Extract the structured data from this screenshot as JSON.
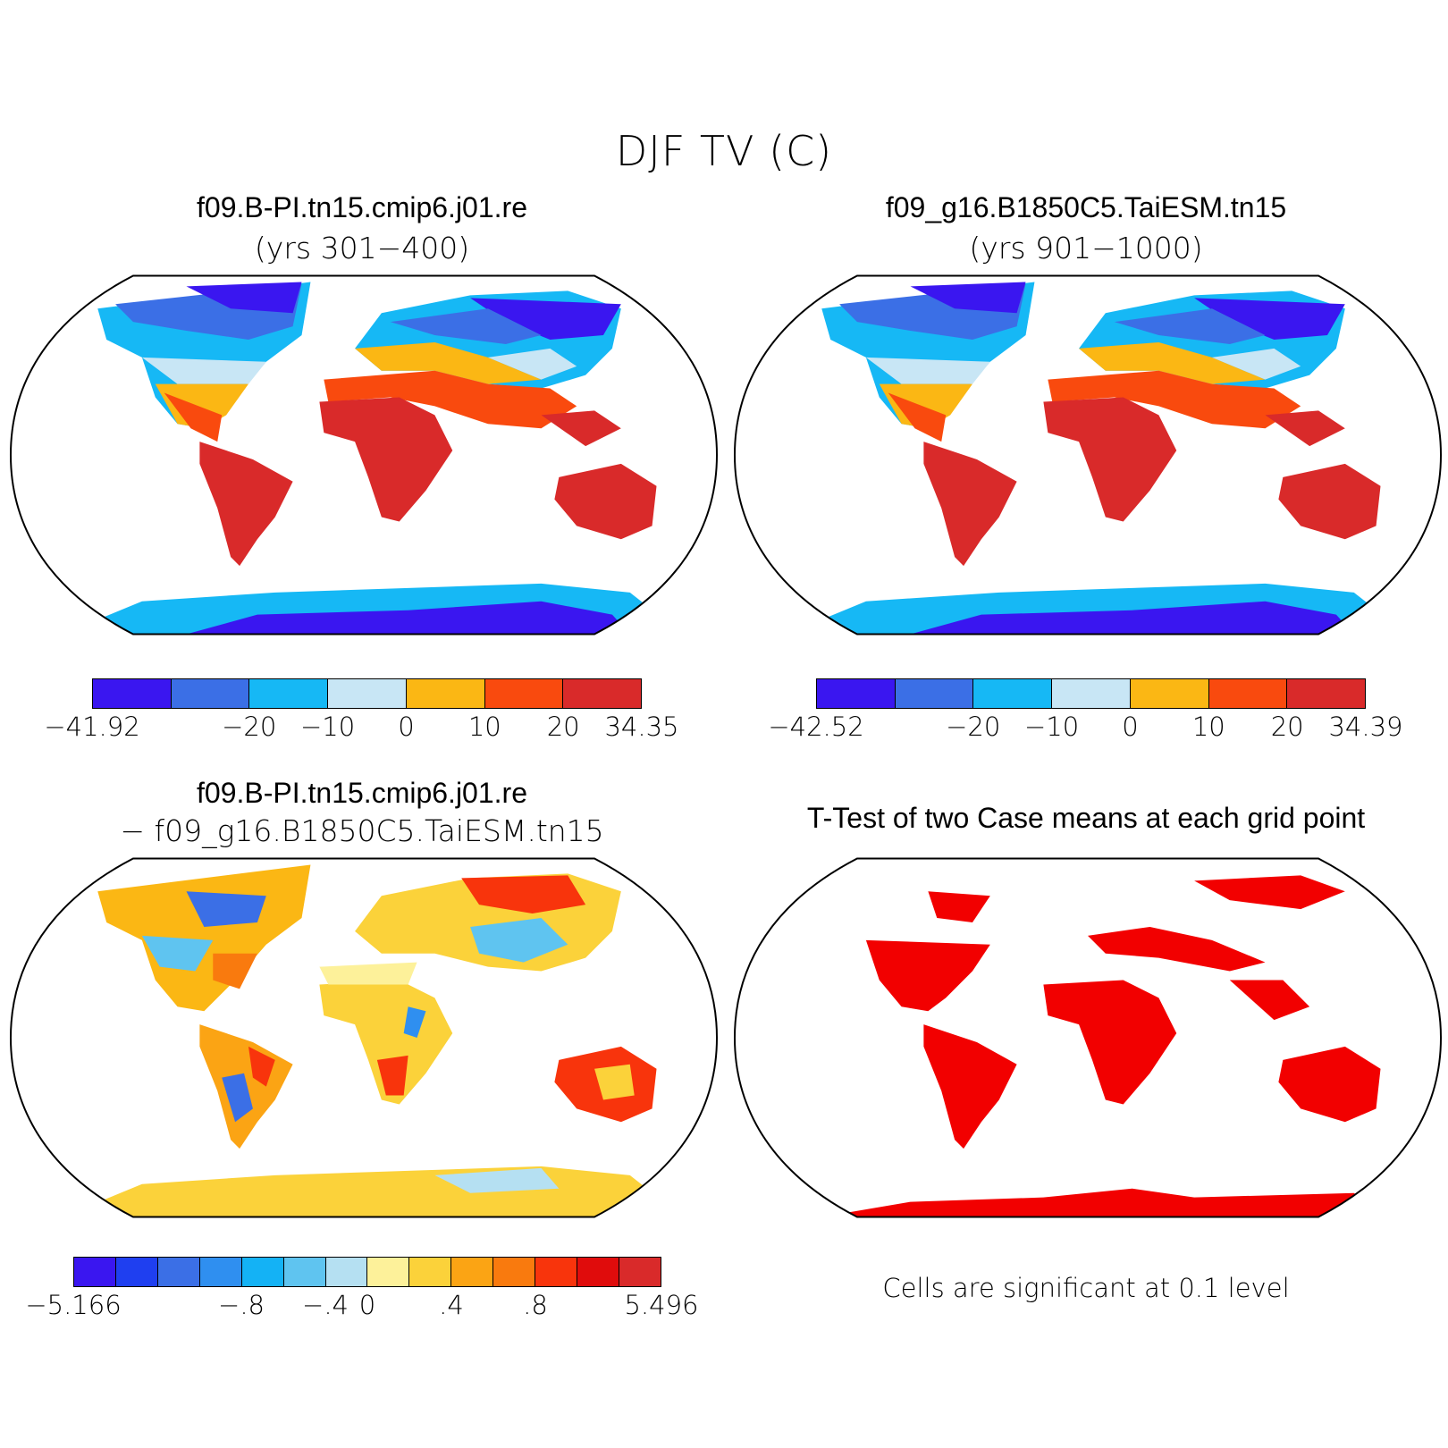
{
  "figure": {
    "title": "DJF TV (C)"
  },
  "panels": {
    "case1": {
      "title": "f09.B-PI.tn15.cmip6.j01.re",
      "subtitle": "(yrs 301−400)",
      "colorbar": {
        "colors": [
          "#3a16f0",
          "#3b6fe6",
          "#16b8f5",
          "#c8e6f5",
          "#fbb714",
          "#f94a0e",
          "#d92a2a"
        ],
        "ticks": [
          "−41.92",
          "−20",
          "−10",
          "0",
          "10",
          "20",
          "34.35"
        ],
        "tick_boundaries": [
          0,
          2,
          3,
          4,
          5,
          6,
          7
        ]
      }
    },
    "case2": {
      "title": "f09_g16.B1850C5.TaiESM.tn15",
      "subtitle": "(yrs 901−1000)",
      "colorbar": {
        "colors": [
          "#3a16f0",
          "#3b6fe6",
          "#16b8f5",
          "#c8e6f5",
          "#fbb714",
          "#f94a0e",
          "#d92a2a"
        ],
        "ticks": [
          "−42.52",
          "−20",
          "−10",
          "0",
          "10",
          "20",
          "34.39"
        ],
        "tick_boundaries": [
          0,
          2,
          3,
          4,
          5,
          6,
          7
        ]
      }
    },
    "diff": {
      "title": "f09.B-PI.tn15.cmip6.j01.re",
      "subtitle": "− f09_g16.B1850C5.TaiESM.tn15",
      "colorbar": {
        "colors": [
          "#3a16f0",
          "#1f3ff0",
          "#3b6fe6",
          "#2f8ff0",
          "#14b2f5",
          "#5fc4f0",
          "#b5e0f2",
          "#fdf19a",
          "#fbd23a",
          "#fba414",
          "#f97a0e",
          "#f8340c",
          "#e00c0c",
          "#d92a2a"
        ],
        "ticks": [
          "−5.166",
          "−.8",
          "−.4",
          "0",
          ".4",
          ".8",
          "5.496"
        ],
        "tick_boundaries": [
          0,
          4,
          6,
          7,
          9,
          11,
          14
        ]
      }
    },
    "ttest": {
      "title": "T-Test of two Case means at each grid point",
      "note": "Cells are significant at 0.1 level",
      "significant_color": "#f20000"
    }
  }
}
